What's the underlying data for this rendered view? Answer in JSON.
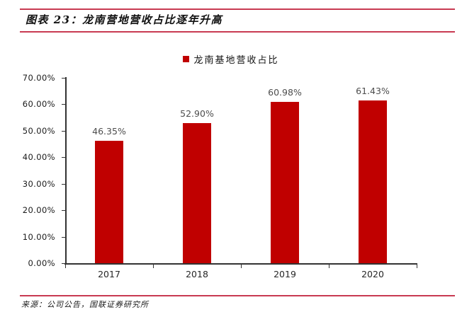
{
  "header": {
    "title": "图表 23：龙南营地营收占比逐年升高"
  },
  "legend": {
    "label": "龙南基地营收占比"
  },
  "chart_data": {
    "type": "bar",
    "title": "龙南营地营收占比逐年升高",
    "categories": [
      "2017",
      "2018",
      "2019",
      "2020"
    ],
    "values": [
      46.35,
      52.9,
      60.98,
      61.43
    ],
    "data_labels": [
      "46.35%",
      "52.90%",
      "60.98%",
      "61.43%"
    ],
    "series_name": "龙南基地营收占比",
    "legend_position": "top-center",
    "xlabel": "",
    "ylabel": "",
    "ylim": [
      0,
      70
    ],
    "ytick_step": 10,
    "ytick_labels": [
      "0.00%",
      "10.00%",
      "20.00%",
      "30.00%",
      "40.00%",
      "50.00%",
      "60.00%",
      "70.00%"
    ],
    "grid": false
  },
  "footer": {
    "source": "来源：公司公告，国联证券研究所"
  },
  "colors": {
    "bar": "#C00000",
    "accent_line": "#C83A52",
    "axis": "#333333",
    "data_label": "#4d4d4d"
  }
}
